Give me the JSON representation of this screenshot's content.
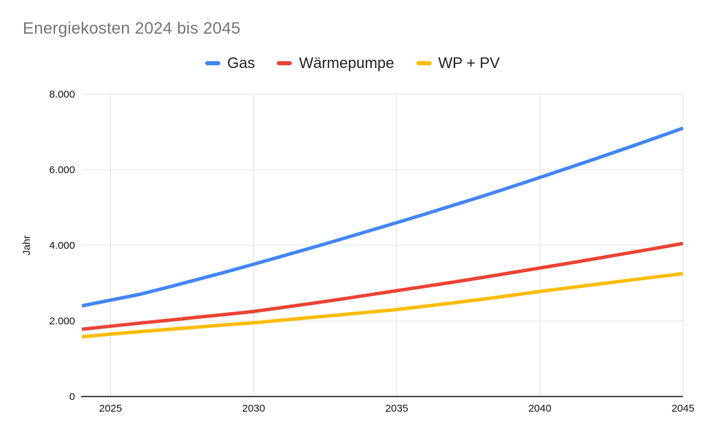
{
  "chart_data": {
    "type": "line",
    "title": "Energiekosten 2024 bis 2045",
    "xlabel": "",
    "ylabel": "Jahr",
    "xlim": [
      2024,
      2045
    ],
    "ylim": [
      0,
      8000
    ],
    "grid": true,
    "legend_position": "top-center",
    "x": [
      2024,
      2025,
      2026,
      2027,
      2028,
      2029,
      2030,
      2031,
      2032,
      2033,
      2034,
      2035,
      2036,
      2037,
      2038,
      2039,
      2040,
      2041,
      2042,
      2043,
      2044,
      2045
    ],
    "series": [
      {
        "name": "Gas",
        "color": "#4285F4",
        "values": [
          2400,
          2550,
          2700,
          2890,
          3090,
          3290,
          3500,
          3715,
          3930,
          4150,
          4375,
          4600,
          4830,
          5065,
          5300,
          5545,
          5795,
          6050,
          6305,
          6565,
          6830,
          7100
        ]
      },
      {
        "name": "Wärmepumpe",
        "color": "#EA4335",
        "values": [
          1780,
          1860,
          1940,
          2015,
          2095,
          2170,
          2250,
          2355,
          2460,
          2570,
          2685,
          2800,
          2915,
          3030,
          3150,
          3275,
          3400,
          3525,
          3655,
          3785,
          3915,
          4050
        ]
      },
      {
        "name": "WP + PV",
        "color": "#FBBC04",
        "values": [
          1580,
          1650,
          1715,
          1775,
          1835,
          1895,
          1950,
          2020,
          2090,
          2160,
          2230,
          2300,
          2390,
          2480,
          2575,
          2675,
          2780,
          2875,
          2970,
          3065,
          3160,
          3250
        ]
      }
    ],
    "x_ticks": [
      2025,
      2030,
      2035,
      2040,
      2045
    ],
    "x_tick_labels": [
      "2025",
      "2030",
      "2035",
      "2040",
      "2045"
    ],
    "y_ticks": [
      0,
      2000,
      4000,
      6000,
      8000
    ],
    "y_tick_labels": [
      "0",
      "2.000",
      "4.000",
      "6.000",
      "8.000"
    ],
    "colors": {
      "grid": "#e0e0e0",
      "axis": "#424242",
      "title": "#757575",
      "tick_text": "#111111",
      "background": "#ffffff"
    }
  }
}
